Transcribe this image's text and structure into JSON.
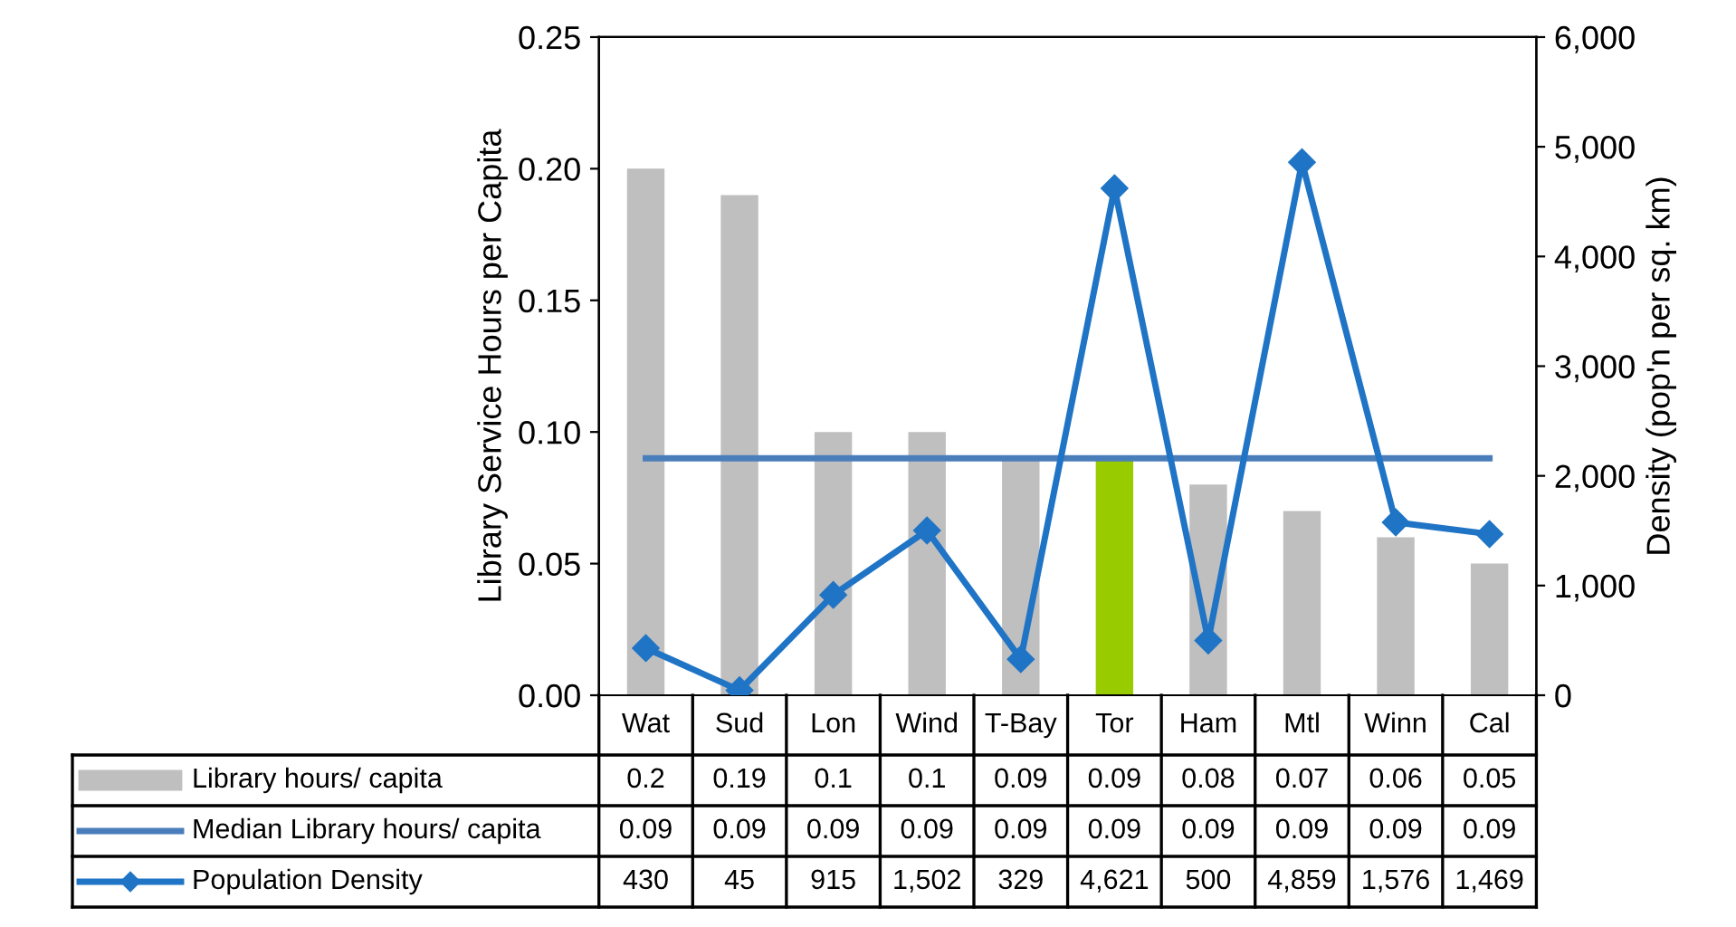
{
  "chart_data": {
    "type": "bar",
    "ylabel": "Library Service Hours per Capita",
    "y2label": "Density (pop'n per sq. km)",
    "categories": [
      "Wat",
      "Sud",
      "Lon",
      "Wind",
      "T-Bay",
      "Tor",
      "Ham",
      "Mtl",
      "Winn",
      "Cal"
    ],
    "series": [
      {
        "name": "Library hours/ capita",
        "color": "#bfbfbf",
        "colors": [
          "#bfbfbf",
          "#bfbfbf",
          "#bfbfbf",
          "#bfbfbf",
          "#bfbfbf",
          "#99cc00",
          "#bfbfbf",
          "#bfbfbf",
          "#bfbfbf",
          "#bfbfbf"
        ],
        "values": [
          0.2,
          0.19,
          0.1,
          0.1,
          0.09,
          0.09,
          0.08,
          0.07,
          0.06,
          0.05
        ],
        "value_labels": [
          "0.2",
          "0.19",
          "0.1",
          "0.1",
          "0.09",
          "0.09",
          "0.08",
          "0.07",
          "0.06",
          "0.05"
        ]
      },
      {
        "name": "Median Library hours/ capita",
        "type": "line",
        "color": "#4a7ebb",
        "marker": "none",
        "values": [
          0.09,
          0.09,
          0.09,
          0.09,
          0.09,
          0.09,
          0.09,
          0.09,
          0.09,
          0.09
        ],
        "value_labels": [
          "0.09",
          "0.09",
          "0.09",
          "0.09",
          "0.09",
          "0.09",
          "0.09",
          "0.09",
          "0.09",
          "0.09"
        ]
      },
      {
        "name": "Population Density",
        "type": "line",
        "axis": "y2",
        "color": "#1f74c5",
        "marker": "diamond",
        "values": [
          430,
          45,
          915,
          1502,
          329,
          4621,
          500,
          4859,
          1576,
          1469
        ],
        "value_labels": [
          "430",
          "45",
          "915",
          "1,502",
          "329",
          "4,621",
          "500",
          "4,859",
          "1,576",
          "1,469"
        ]
      }
    ],
    "ylim": [
      0,
      0.25
    ],
    "yticks": [
      {
        "value": 0,
        "label": "0.00"
      },
      {
        "value": 0.05,
        "label": "0.05"
      },
      {
        "value": 0.1,
        "label": "0.10"
      },
      {
        "value": 0.15,
        "label": "0.15"
      },
      {
        "value": 0.2,
        "label": "0.20"
      },
      {
        "value": 0.25,
        "label": "0.25"
      }
    ],
    "y2lim": [
      0,
      6000
    ],
    "y2ticks": [
      0,
      {
        "value": 1000,
        "label": "1,000"
      },
      {
        "value": 2000,
        "label": "2,000"
      },
      {
        "value": 3000,
        "label": "3,000"
      },
      {
        "value": 4000,
        "label": "4,000"
      },
      {
        "value": 5000,
        "label": "5,000"
      },
      {
        "value": 6000,
        "label": "6,000"
      }
    ],
    "grid": false,
    "legend": "bottom"
  }
}
